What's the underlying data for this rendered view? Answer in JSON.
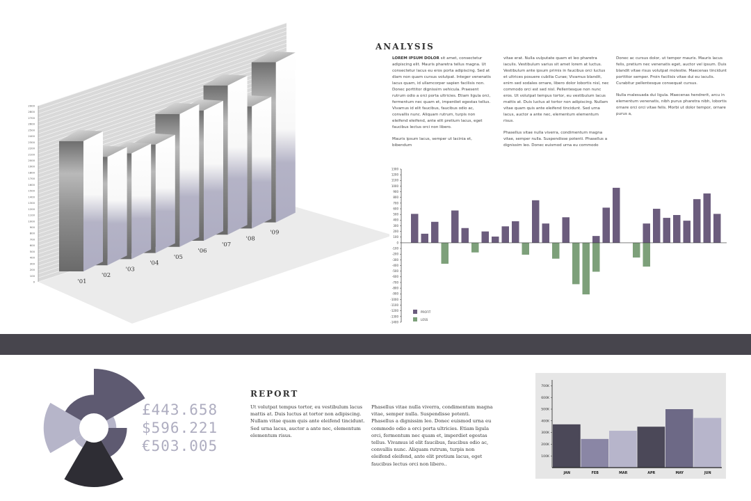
{
  "colors": {
    "band": "#47454d",
    "profit": "#6b5c7d",
    "loss": "#7da07a",
    "pie_dark": "#2e2d34",
    "pie_mid": "#5e5a71",
    "pie_light": "#b6b5c9",
    "bar_dark": "#4b4858",
    "bar_mid": "#8a86a5",
    "bar_light": "#b7b5cb"
  },
  "analysis": {
    "title": "ANALYSIS",
    "col1_lead": "LOREM IPSUM DOLOR",
    "col1_p1": " sit amet, consectetur adipiscing elit. Mauris pharetra tellus magna. Ut consectetur lacus eu eros porta adipiscing. Sed at diam non quam cursus volutpat. Integer venenatis lacus quam, id ullamcorper sapien facilisis non. Donec porttitor dignissim vehicula. Praesent rutrum odio a orci porta ultricies. Etiam ligula orci, fermentum nec quam et, imperdiet egestas tellus. Vivamus id elit faucibus, faucibus odio ac, convallis nunc. Aliquam rutrum, turpis non eleifend eleifend, ante elit pretium lacus, eget faucibus lectus orci non libero.",
    "col1_p2": "Mauris ipsum lacus, semper ut lacinia et, bibendum",
    "col2_p1": "vitae erat. Nulla vulputate quam et leo pharetra iaculis. Vestibulum varius sit amet lorem at luctus. Vestibulum ante ipsum primis in faucibus orci luctus et ultrices posuere cubilia Curae; Vivamus blandit, enim sed sodales ornare, libero dolor lobortis nisl, nec commodo orci est sed nisl. Pellentesque non nunc eros. Ut volutpat tempus tortor, eu vestibulum lacus mattis at. Duis luctus at tortor non adipiscing. Nullam vitae quam quis ante eleifend tincidunt. Sed urna lacus, auctor a ante nec, elementum elementum risus.",
    "col2_p2": "Phasellus vitae nulla viverra, condimentum magna vitae, semper nulla. Suspendisse potenti. Phasellus a dignissim leo. Donec euismod urna eu commodo",
    "col3_p1": "Donec ac cursus dolor, ut tempor mauris. Mauris lacus felis, pretium nec venenatis eget, auctor vel ipsum. Duis blandit vitae risus volutpat molestie. Maecenas tincidunt porttitor semper. Proin facilisis vitae dui eu iaculis. Curabitur pellentesque consequat cursus.",
    "col3_p2": "Nulla malesuada dui ligula. Maecenas hendrerit, arcu in elementum venenatis, nibh purus pharetra nibh, lobortis ornare orci orci vitae felis. Morbi ut dolor tempor, ornare purus a,"
  },
  "report": {
    "title": "REPORT",
    "money": [
      "£443.658",
      "$596.221",
      "€503.005"
    ],
    "col1": "Ut volutpat tempus tortor, eu vestibulum lacus mattis at. Duis luctus at tortor non adipiscing. Nullam vitae quam quis ante eleifend tincidunt. Sed urna lacus, auctor a ante nec, elementum elementum risus.",
    "col2": "Phasellus vitae nulla viverra, condimentum magna vitae, semper nulla. Suspendisse potenti. Phasellus a dignissim leo. Donec euismod urna eu commodo odio a orci porta ultricies. Etiam ligula orci, fermentum nec quam et, imperdiet egestas tellus. Vivamus id elit faucibus, faucibus odio ac, convallis nunc. Aliquam rutrum, turpis non eleifend eleifend, ante elit pretium lacus, eget faucibus lectus orci non libero.."
  },
  "chart_data": [
    {
      "type": "bar",
      "categories": [
        "'01",
        "'02",
        "'03",
        "'04",
        "'05",
        "'06",
        "'07",
        "'08",
        "'09"
      ],
      "series": [
        {
          "values": [
            2400,
            2000,
            1950,
            2000,
            2450,
            2400,
            2750,
            2250,
            2950
          ]
        }
      ],
      "yticks": [
        0,
        100,
        200,
        300,
        400,
        500,
        600,
        700,
        800,
        900,
        1000,
        1100,
        1200,
        1300,
        1400,
        1500,
        1600,
        1700,
        1800,
        1900,
        2000,
        2100,
        2200,
        2300,
        2400,
        2500,
        2600,
        2700,
        2800,
        2900
      ],
      "ylim": [
        0,
        2900
      ],
      "grid": true
    },
    {
      "type": "bar",
      "series": [
        {
          "name": "PROFIT",
          "values": [
            510,
            160,
            370,
            0,
            570,
            260,
            0,
            200,
            110,
            290,
            380,
            0,
            750,
            340,
            0,
            450,
            0,
            0,
            120,
            620,
            970,
            0,
            0,
            340,
            600,
            440,
            490,
            390,
            770,
            870,
            510
          ]
        },
        {
          "name": "LOSS",
          "values": [
            0,
            0,
            0,
            -370,
            0,
            0,
            -170,
            0,
            0,
            0,
            0,
            -210,
            0,
            0,
            -280,
            0,
            -730,
            -910,
            -510,
            0,
            0,
            0,
            -260,
            -420,
            0,
            0,
            0,
            0,
            0,
            0,
            0
          ]
        }
      ],
      "yticks": [
        1300,
        1200,
        1100,
        1000,
        900,
        800,
        700,
        600,
        500,
        400,
        300,
        200,
        100,
        0,
        -100,
        -200,
        -300,
        -400,
        -500,
        -600,
        -700,
        -800,
        -900,
        -1000,
        -1100,
        -1200,
        -1300,
        -1400
      ],
      "ylim": [
        -1400,
        1300
      ],
      "legend": "bottom-left"
    },
    {
      "type": "pie",
      "slices": [
        {
          "value": 60,
          "color": "#5e5a71",
          "radius": 1.0
        },
        {
          "value": 30,
          "color": "#b6b5c9",
          "radius": 0.38
        },
        {
          "value": 60,
          "color": "#5e5a71",
          "radius": 0.56
        },
        {
          "value": 60,
          "color": "#2e2d34",
          "radius": 1.0
        },
        {
          "value": 30,
          "color": "#b6b5c9",
          "radius": 0.38
        },
        {
          "value": 60,
          "color": "#b6b5c9",
          "radius": 0.85
        },
        {
          "value": 60,
          "color": "#5e5a71",
          "radius": 0.56
        }
      ]
    },
    {
      "type": "bar",
      "categories": [
        "JAN",
        "FEB",
        "MAR",
        "APR",
        "MAY",
        "JUN"
      ],
      "series": [
        {
          "values": [
            370000,
            245000,
            315000,
            350000,
            500000,
            425000
          ]
        }
      ],
      "bar_colors": [
        "#4b4858",
        "#8a86a5",
        "#b7b5cb",
        "#4b4858",
        "#6d6986",
        "#b7b5cb"
      ],
      "yticks": [
        "100K",
        "200K",
        "300K",
        "400K",
        "500K",
        "600K",
        "700K"
      ],
      "ytick_values": [
        100000,
        200000,
        300000,
        400000,
        500000,
        600000,
        700000
      ],
      "ylim": [
        0,
        750000
      ]
    }
  ]
}
